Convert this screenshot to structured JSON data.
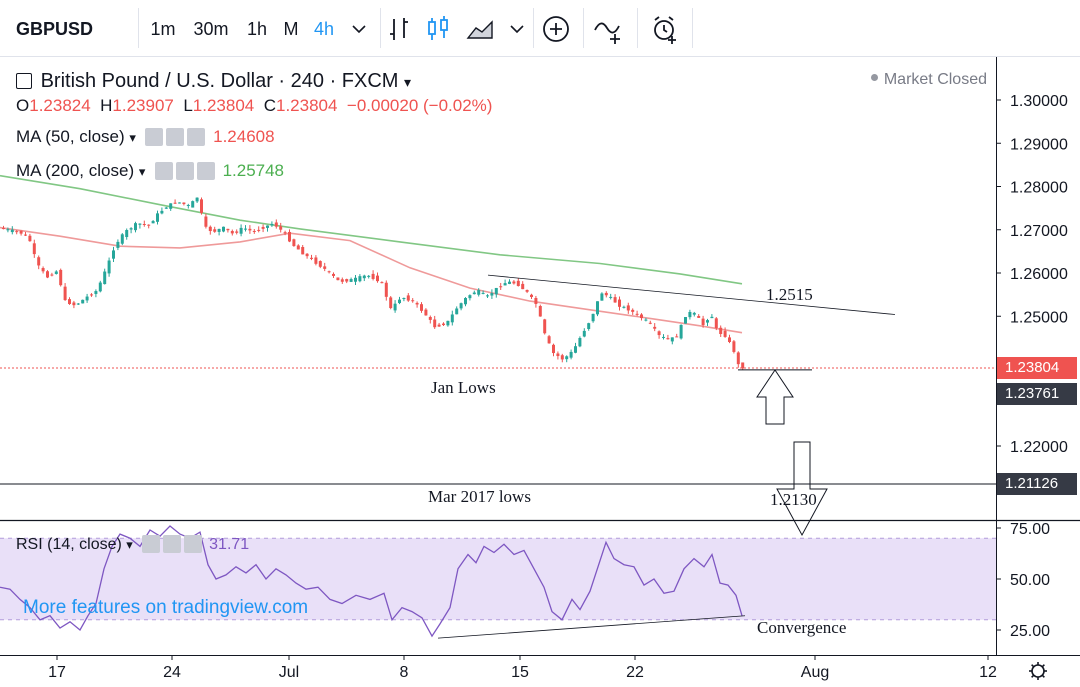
{
  "toolbar": {
    "symbol": "GBPUSD",
    "intervals": [
      "1m",
      "30m",
      "1h",
      "M",
      "4h"
    ],
    "active_interval": "4h",
    "icons": [
      "chevron-down-icon",
      "bar-style-icon",
      "candles-icon",
      "area-icon",
      "chevron-down-icon",
      "plus-circle-icon",
      "indicators-icon",
      "alarm-icon"
    ]
  },
  "legend": {
    "title": "British Pound / U.S. Dollar · 240 · FXCM",
    "status": "Market Closed",
    "ohlc": {
      "o_label": "O",
      "o": "1.23824",
      "h_label": "H",
      "h": "1.23907",
      "l_label": "L",
      "l": "1.23804",
      "c_label": "C",
      "c": "1.23804",
      "change": "−0.00020 (−0.02%)"
    },
    "ma50": {
      "label": "MA (50, close)",
      "value": "1.24608",
      "color": "#ef5350"
    },
    "ma200": {
      "label": "MA (200, close)",
      "value": "1.25748",
      "color": "#4caf50"
    },
    "rsi": {
      "label": "RSI (14, close)",
      "value": "31.71",
      "color": "#7e57c2"
    }
  },
  "colors": {
    "up": "#26a69a",
    "down": "#ef5350",
    "rsi_band": "#e1d5f5",
    "watermark": "#2196f3"
  },
  "watermark": "More features on tradingview.com",
  "price_axis": {
    "ticks": [
      "1.30000",
      "1.29000",
      "1.28000",
      "1.27000",
      "1.26000",
      "1.25000",
      "1.22000"
    ],
    "current_badge": "1.23804",
    "jan_badge": "1.23761",
    "mar_badge": "1.21126"
  },
  "rsi_axis": {
    "ticks": [
      "75.00",
      "50.00",
      "25.00"
    ]
  },
  "time_axis": {
    "ticks": [
      "17",
      "24",
      "Jul",
      "8",
      "15",
      "22",
      "Aug",
      "12"
    ]
  },
  "annotations": {
    "resistance_label": "1.2515",
    "jan_lows": "Jan Lows",
    "mar_lows": "Mar 2017 lows",
    "target_label": "1.2130",
    "convergence": "Convergence"
  },
  "chart_data": {
    "type": "candlestick",
    "title": "British Pound / U.S. Dollar · 240 · FXCM",
    "ylim": [
      1.2085,
      1.3045
    ],
    "x_ticks": [
      "17",
      "24",
      "Jul",
      "8",
      "15",
      "22",
      "Aug",
      "12"
    ],
    "price_path": [
      [
        0,
        1.2705
      ],
      [
        10,
        1.27
      ],
      [
        22,
        1.2695
      ],
      [
        32,
        1.268
      ],
      [
        40,
        1.262
      ],
      [
        50,
        1.259
      ],
      [
        60,
        1.2605
      ],
      [
        68,
        1.2535
      ],
      [
        78,
        1.2525
      ],
      [
        90,
        1.2545
      ],
      [
        100,
        1.256
      ],
      [
        110,
        1.2615
      ],
      [
        118,
        1.2665
      ],
      [
        128,
        1.2695
      ],
      [
        140,
        1.2715
      ],
      [
        152,
        1.271
      ],
      [
        160,
        1.2735
      ],
      [
        170,
        1.2755
      ],
      [
        180,
        1.2765
      ],
      [
        192,
        1.2755
      ],
      [
        200,
        1.2775
      ],
      [
        208,
        1.2705
      ],
      [
        216,
        1.2695
      ],
      [
        226,
        1.2705
      ],
      [
        236,
        1.269
      ],
      [
        246,
        1.2705
      ],
      [
        256,
        1.2695
      ],
      [
        266,
        1.2705
      ],
      [
        276,
        1.2715
      ],
      [
        286,
        1.2695
      ],
      [
        296,
        1.2665
      ],
      [
        306,
        1.2645
      ],
      [
        318,
        1.2625
      ],
      [
        330,
        1.2605
      ],
      [
        342,
        1.258
      ],
      [
        356,
        1.2585
      ],
      [
        370,
        1.2595
      ],
      [
        384,
        1.258
      ],
      [
        394,
        1.2515
      ],
      [
        404,
        1.2545
      ],
      [
        416,
        1.2535
      ],
      [
        428,
        1.2505
      ],
      [
        438,
        1.2475
      ],
      [
        450,
        1.2485
      ],
      [
        460,
        1.252
      ],
      [
        470,
        1.2545
      ],
      [
        480,
        1.256
      ],
      [
        490,
        1.2545
      ],
      [
        500,
        1.2565
      ],
      [
        510,
        1.258
      ],
      [
        520,
        1.2575
      ],
      [
        530,
        1.2555
      ],
      [
        540,
        1.2525
      ],
      [
        548,
        1.2455
      ],
      [
        556,
        1.2415
      ],
      [
        566,
        1.24
      ],
      [
        576,
        1.242
      ],
      [
        584,
        1.2455
      ],
      [
        594,
        1.2495
      ],
      [
        604,
        1.2555
      ],
      [
        612,
        1.2545
      ],
      [
        622,
        1.2525
      ],
      [
        632,
        1.2515
      ],
      [
        642,
        1.25
      ],
      [
        652,
        1.2485
      ],
      [
        662,
        1.2455
      ],
      [
        672,
        1.2445
      ],
      [
        680,
        1.2455
      ],
      [
        690,
        1.251
      ],
      [
        698,
        1.2505
      ],
      [
        706,
        1.248
      ],
      [
        714,
        1.2505
      ],
      [
        720,
        1.2465
      ],
      [
        728,
        1.2455
      ],
      [
        736,
        1.2425
      ],
      [
        742,
        1.2382
      ]
    ],
    "ma50": [
      [
        0,
        1.2705
      ],
      [
        60,
        1.2685
      ],
      [
        120,
        1.2662
      ],
      [
        180,
        1.2658
      ],
      [
        240,
        1.2672
      ],
      [
        290,
        1.2692
      ],
      [
        350,
        1.2675
      ],
      [
        410,
        1.2612
      ],
      [
        470,
        1.2565
      ],
      [
        530,
        1.2535
      ],
      [
        590,
        1.2515
      ],
      [
        650,
        1.2495
      ],
      [
        700,
        1.2478
      ],
      [
        742,
        1.2462
      ]
    ],
    "ma200": [
      [
        0,
        1.2825
      ],
      [
        80,
        1.2795
      ],
      [
        160,
        1.2758
      ],
      [
        240,
        1.2722
      ],
      [
        300,
        1.2702
      ],
      [
        400,
        1.2672
      ],
      [
        500,
        1.2642
      ],
      [
        600,
        1.2622
      ],
      [
        680,
        1.2598
      ],
      [
        742,
        1.2575
      ]
    ],
    "rsi": [
      [
        0,
        46
      ],
      [
        10,
        45
      ],
      [
        20,
        40
      ],
      [
        30,
        36
      ],
      [
        40,
        30
      ],
      [
        50,
        32
      ],
      [
        60,
        26
      ],
      [
        70,
        29
      ],
      [
        80,
        25
      ],
      [
        88,
        32
      ],
      [
        96,
        38
      ],
      [
        104,
        55
      ],
      [
        112,
        66
      ],
      [
        120,
        72
      ],
      [
        130,
        70
      ],
      [
        140,
        66
      ],
      [
        150,
        74
      ],
      [
        160,
        71
      ],
      [
        170,
        76
      ],
      [
        180,
        72
      ],
      [
        190,
        70
      ],
      [
        200,
        73
      ],
      [
        208,
        57
      ],
      [
        216,
        50
      ],
      [
        226,
        52
      ],
      [
        236,
        56
      ],
      [
        246,
        53
      ],
      [
        256,
        57
      ],
      [
        266,
        50
      ],
      [
        276,
        55
      ],
      [
        286,
        52
      ],
      [
        296,
        48
      ],
      [
        306,
        45
      ],
      [
        318,
        46
      ],
      [
        330,
        40
      ],
      [
        342,
        38
      ],
      [
        356,
        42
      ],
      [
        370,
        40
      ],
      [
        384,
        43
      ],
      [
        392,
        30
      ],
      [
        402,
        36
      ],
      [
        412,
        34
      ],
      [
        422,
        31
      ],
      [
        432,
        22
      ],
      [
        440,
        28
      ],
      [
        450,
        36
      ],
      [
        458,
        55
      ],
      [
        468,
        62
      ],
      [
        476,
        58
      ],
      [
        484,
        66
      ],
      [
        494,
        63
      ],
      [
        504,
        67
      ],
      [
        514,
        62
      ],
      [
        524,
        64
      ],
      [
        534,
        55
      ],
      [
        544,
        46
      ],
      [
        552,
        34
      ],
      [
        562,
        30
      ],
      [
        572,
        40
      ],
      [
        580,
        35
      ],
      [
        590,
        44
      ],
      [
        598,
        56
      ],
      [
        606,
        68
      ],
      [
        614,
        60
      ],
      [
        624,
        57
      ],
      [
        634,
        56
      ],
      [
        644,
        47
      ],
      [
        654,
        50
      ],
      [
        664,
        43
      ],
      [
        674,
        44
      ],
      [
        684,
        55
      ],
      [
        694,
        60
      ],
      [
        704,
        56
      ],
      [
        712,
        62
      ],
      [
        720,
        48
      ],
      [
        728,
        47
      ],
      [
        736,
        42
      ],
      [
        742,
        32
      ]
    ],
    "resistance_line": [
      [
        488,
        1.2595
      ],
      [
        895,
        1.2504
      ]
    ],
    "jan_lows_line": [
      [
        738,
        1.2376
      ],
      [
        812,
        1.2376
      ]
    ],
    "mar_lows": 1.2112,
    "rsi_trendline": [
      [
        438,
        21
      ],
      [
        745,
        32
      ]
    ],
    "rsi_band": [
      30,
      70
    ],
    "rsi_ylim": [
      15,
      80
    ],
    "current_price": 1.23804,
    "jan_lows_price": 1.23761,
    "mar_lows_price": 1.21126
  }
}
